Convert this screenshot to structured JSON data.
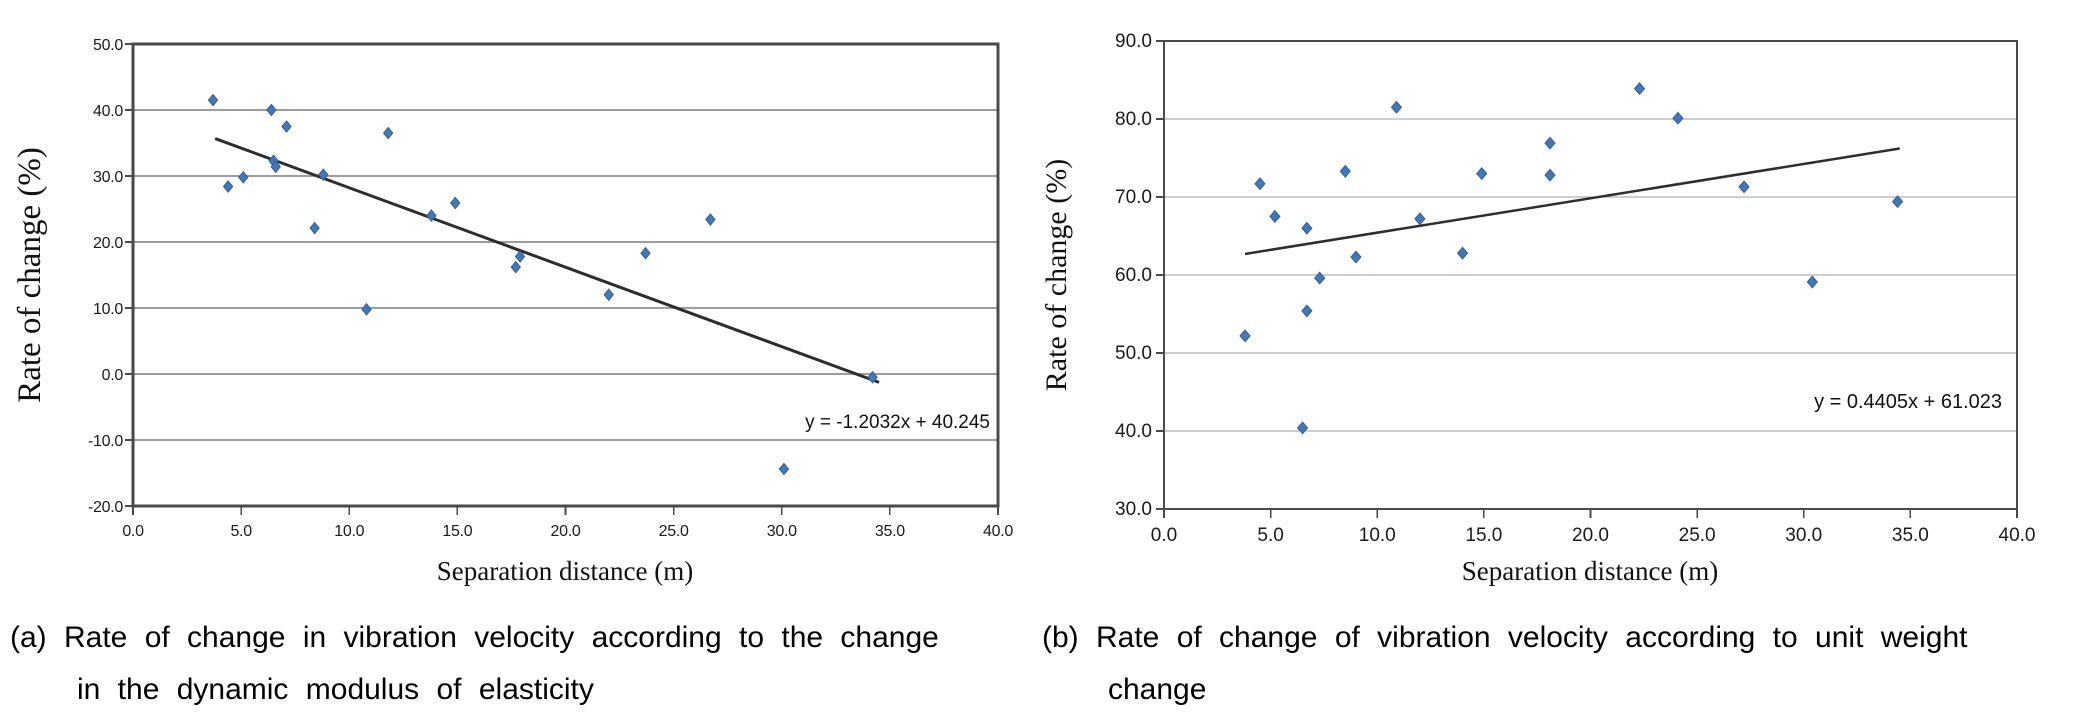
{
  "page": {
    "background": "#ffffff"
  },
  "colors": {
    "marker_blue": "#4576b5",
    "marker_edge": "#35618f",
    "trend_dark": "#2d2d2d",
    "grid_gray": "#9d9d9d",
    "axis_gray": "#4a4a4a",
    "text_black": "#111111"
  },
  "chart_data": [
    {
      "type": "scatter",
      "title": "",
      "xlabel": "Separation distance (m)",
      "ylabel": "Rate of change (%)",
      "xlim": [
        0.0,
        40.0
      ],
      "ylim": [
        -20.0,
        50.0
      ],
      "xticks": [
        "0.0",
        "5.0",
        "10.0",
        "15.0",
        "20.0",
        "25.0",
        "30.0",
        "35.0",
        "40.0"
      ],
      "yticks": [
        "50.0",
        "40.0",
        "30.0",
        "20.0",
        "10.0",
        "0.0",
        "-10.0",
        "-20.0"
      ],
      "grid": true,
      "legend": "none",
      "marker": "diamond",
      "points": [
        [
          3.7,
          41.5
        ],
        [
          4.4,
          28.4
        ],
        [
          5.1,
          29.8
        ],
        [
          6.4,
          40.0
        ],
        [
          6.5,
          32.3
        ],
        [
          6.6,
          31.4
        ],
        [
          7.1,
          37.5
        ],
        [
          8.4,
          22.1
        ],
        [
          8.8,
          30.2
        ],
        [
          10.8,
          9.8
        ],
        [
          11.8,
          36.5
        ],
        [
          13.8,
          24.0
        ],
        [
          14.9,
          25.9
        ],
        [
          17.7,
          16.2
        ],
        [
          17.9,
          17.8
        ],
        [
          22.0,
          12.0
        ],
        [
          23.7,
          18.3
        ],
        [
          26.7,
          23.4
        ],
        [
          30.1,
          -14.4
        ],
        [
          34.2,
          -0.5
        ]
      ],
      "trendline": {
        "equation": "y = -1.2032x + 40.245",
        "slope": -1.2032,
        "intercept": 40.245,
        "x_start": 3.8,
        "x_end": 34.5
      },
      "caption": {
        "line1": "(a) Rate of change in vibration velocity according to the change",
        "line2": "in the dynamic modulus of elasticity"
      }
    },
    {
      "type": "scatter",
      "title": "",
      "xlabel": "Separation distance (m)",
      "ylabel": "Rate of change (%)",
      "xlim": [
        0.0,
        40.0
      ],
      "ylim": [
        30.0,
        90.0
      ],
      "xticks": [
        "0.0",
        "5.0",
        "10.0",
        "15.0",
        "20.0",
        "25.0",
        "30.0",
        "35.0",
        "40.0"
      ],
      "yticks": [
        "90.0",
        "80.0",
        "70.0",
        "60.0",
        "50.0",
        "40.0",
        "30.0"
      ],
      "grid": true,
      "legend": "none",
      "marker": "diamond",
      "points": [
        [
          3.8,
          52.2
        ],
        [
          4.5,
          71.7
        ],
        [
          5.2,
          67.5
        ],
        [
          6.5,
          40.4
        ],
        [
          6.7,
          55.4
        ],
        [
          6.7,
          66.0
        ],
        [
          7.3,
          59.6
        ],
        [
          8.5,
          73.3
        ],
        [
          9.0,
          62.3
        ],
        [
          10.9,
          81.5
        ],
        [
          12.0,
          67.2
        ],
        [
          14.0,
          62.8
        ],
        [
          14.9,
          73.0
        ],
        [
          18.1,
          72.8
        ],
        [
          18.1,
          76.9
        ],
        [
          22.3,
          83.9
        ],
        [
          24.1,
          80.1
        ],
        [
          27.2,
          71.3
        ],
        [
          30.4,
          59.1
        ],
        [
          34.4,
          69.4
        ]
      ],
      "trendline": {
        "equation": "y = 0.4405x + 61.023",
        "slope": 0.4405,
        "intercept": 61.023,
        "x_start": 3.8,
        "x_end": 34.5
      },
      "caption": {
        "line1": "(b) Rate of change of vibration velocity according to unit weight",
        "line2": "change"
      }
    }
  ]
}
